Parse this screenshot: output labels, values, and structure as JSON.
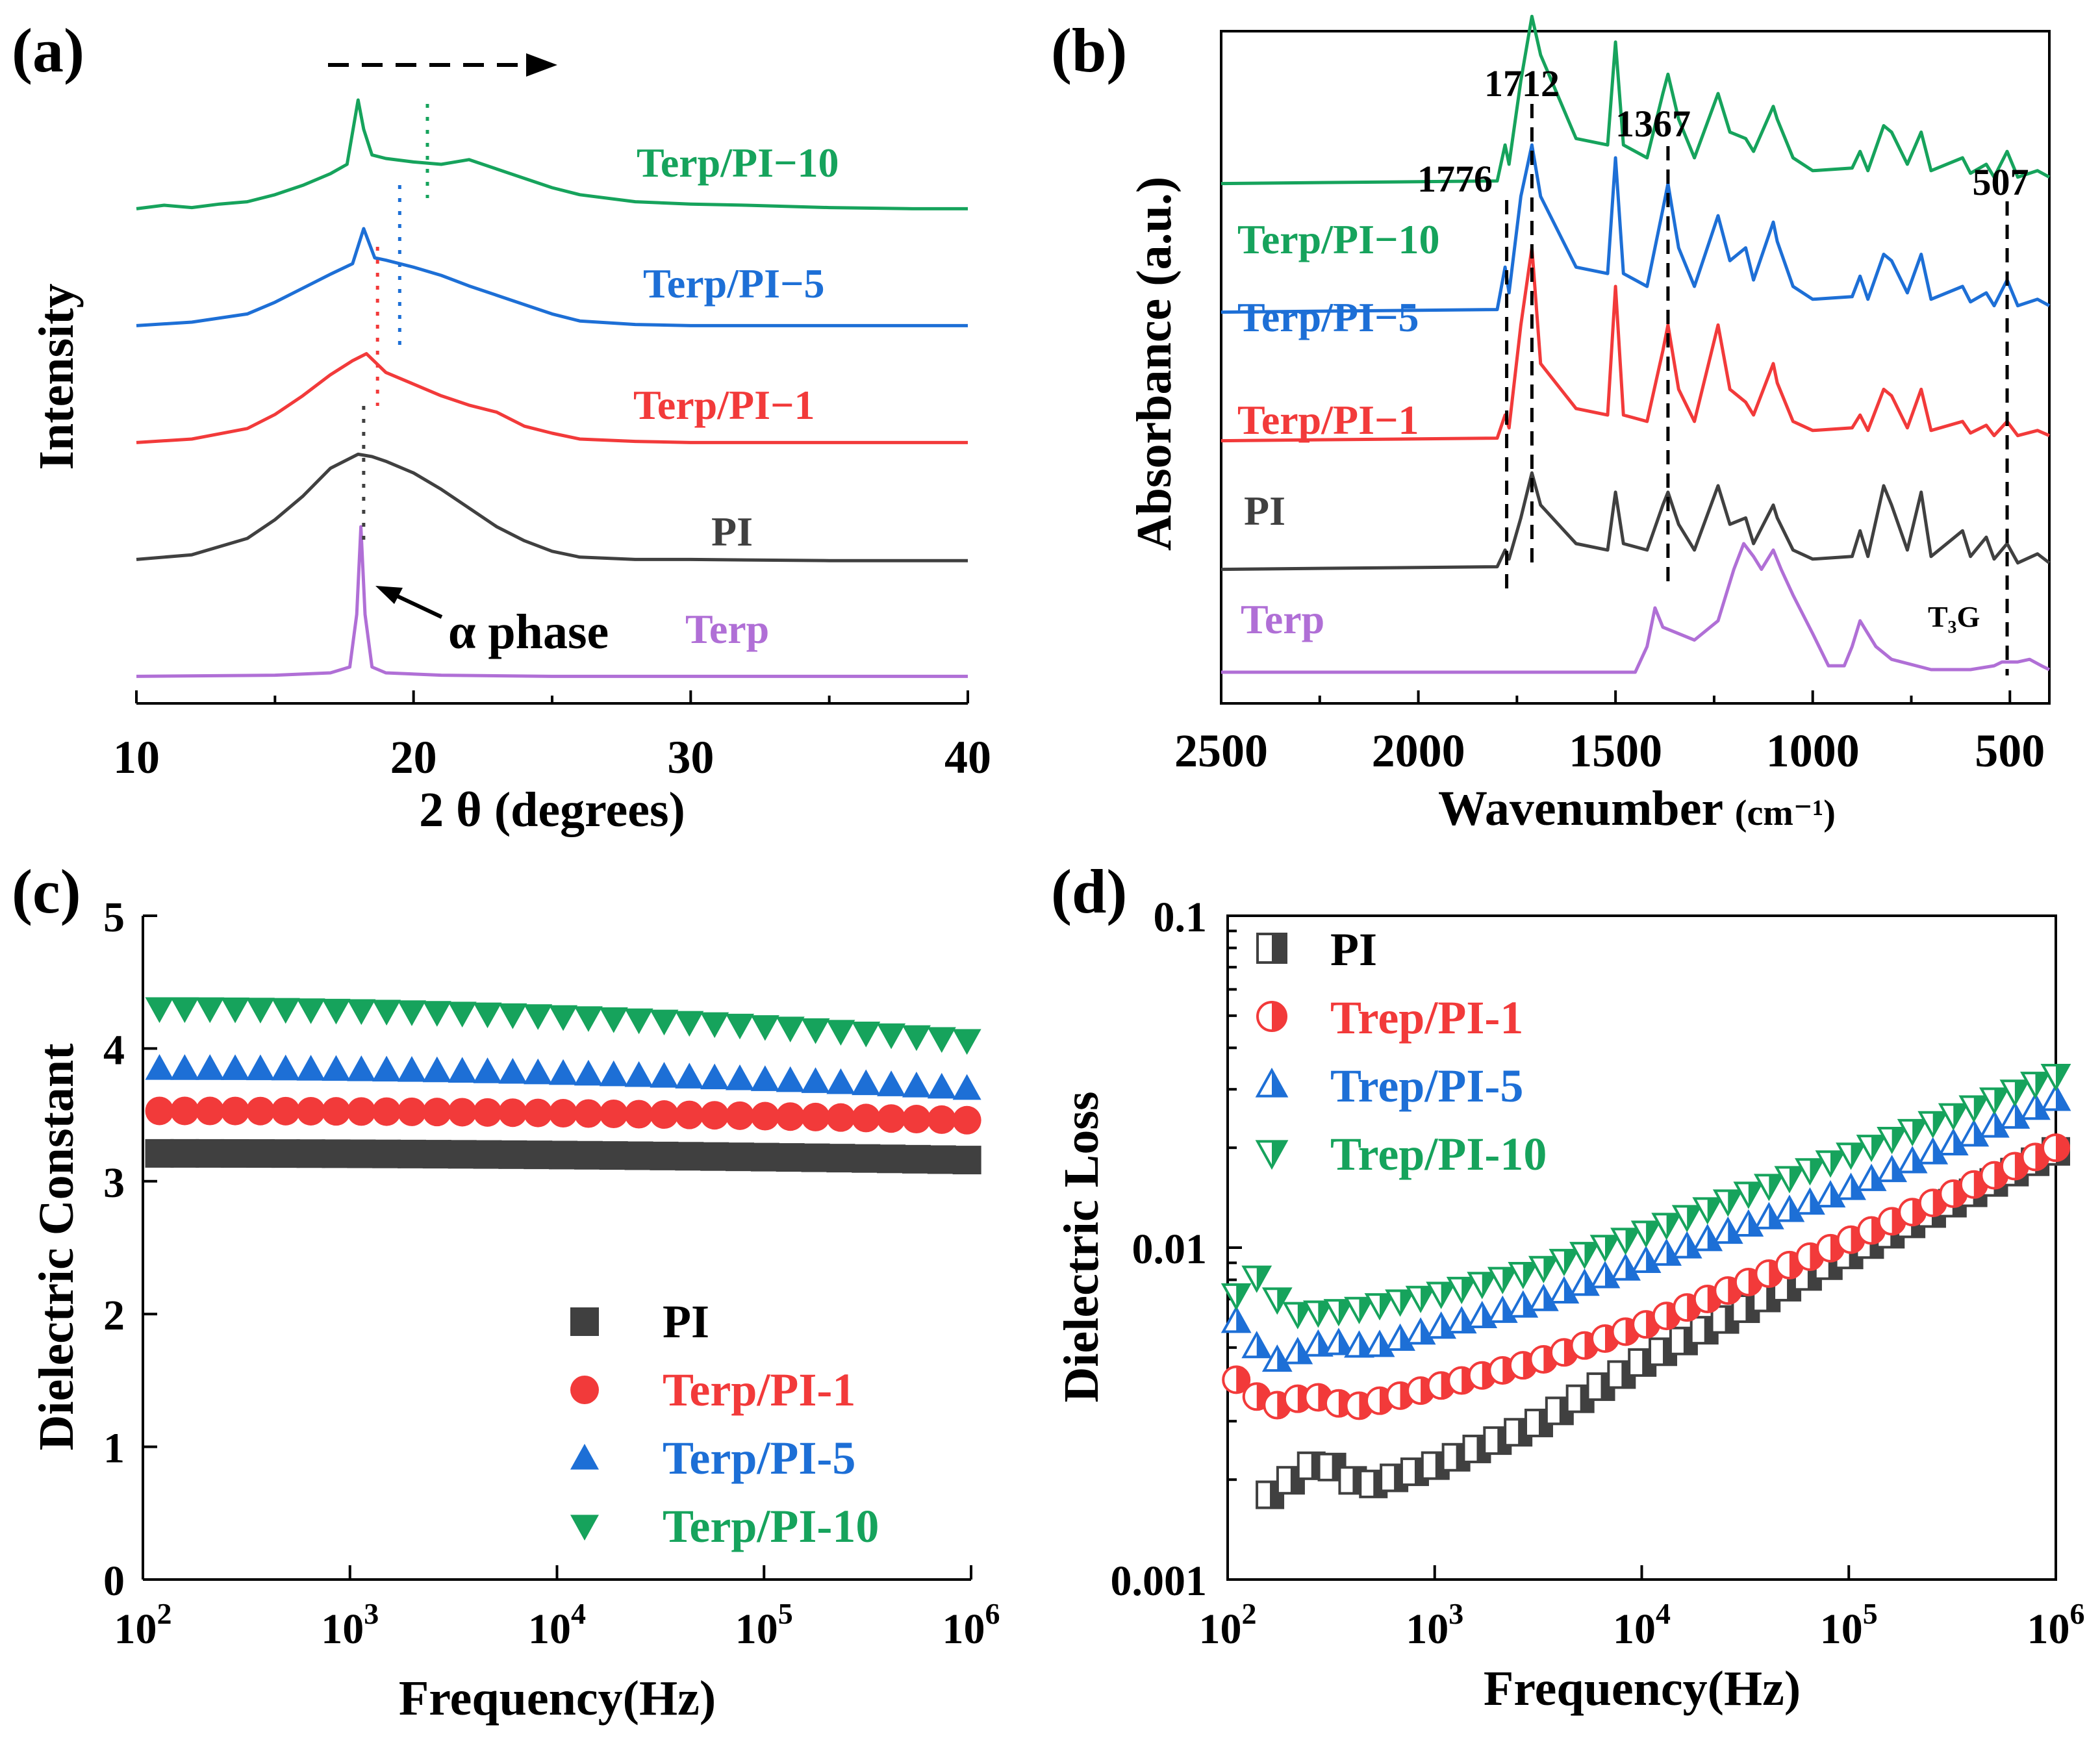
{
  "colors": {
    "gray": "#404040",
    "red": "#f23a3a",
    "blue": "#1d6fd6",
    "green": "#16a35c",
    "purple": "#b06fd6",
    "black": "#000000"
  },
  "chart_data": [
    {
      "id": "a",
      "panel_label": "(a)",
      "type": "line",
      "xlabel": "2 θ (degrees)",
      "ylabel": "Intensity",
      "xlim": [
        10,
        40
      ],
      "xticks": [
        "10",
        "20",
        "30",
        "40"
      ],
      "annotation": "α phase",
      "series": [
        {
          "name": "Terp/PI−10",
          "color": "green",
          "baseline": 4.0,
          "x": [
            10,
            11,
            12,
            13,
            14,
            15,
            16,
            17,
            17.6,
            18.0,
            18.2,
            18.5,
            19,
            20,
            21,
            22,
            23,
            24,
            25,
            26,
            28,
            30,
            32,
            35,
            38,
            40
          ],
          "y": [
            0.02,
            0.05,
            0.03,
            0.06,
            0.08,
            0.14,
            0.22,
            0.32,
            0.4,
            0.95,
            0.7,
            0.48,
            0.45,
            0.42,
            0.4,
            0.44,
            0.36,
            0.28,
            0.2,
            0.14,
            0.08,
            0.06,
            0.05,
            0.03,
            0.02,
            0.02
          ]
        },
        {
          "name": "Terp/PI−5",
          "color": "blue",
          "baseline": 3.0,
          "x": [
            10,
            12,
            14,
            15,
            16,
            17,
            17.8,
            18.2,
            18.6,
            19,
            20,
            21,
            22,
            23,
            24,
            25,
            26,
            28,
            30,
            35,
            40
          ],
          "y": [
            0.02,
            0.05,
            0.12,
            0.22,
            0.34,
            0.46,
            0.55,
            0.85,
            0.6,
            0.58,
            0.52,
            0.45,
            0.36,
            0.28,
            0.2,
            0.12,
            0.06,
            0.03,
            0.02,
            0.02,
            0.02
          ]
        },
        {
          "name": "Terp/PI−1",
          "color": "red",
          "baseline": 2.0,
          "x": [
            10,
            12,
            14,
            15,
            16,
            17,
            17.8,
            18.3,
            19,
            20,
            21,
            22,
            23,
            24,
            25,
            26,
            28,
            30,
            35,
            40
          ],
          "y": [
            0.02,
            0.05,
            0.14,
            0.26,
            0.42,
            0.6,
            0.72,
            0.78,
            0.62,
            0.52,
            0.42,
            0.34,
            0.28,
            0.16,
            0.1,
            0.05,
            0.03,
            0.02,
            0.02,
            0.02
          ]
        },
        {
          "name": "PI",
          "color": "gray",
          "baseline": 1.0,
          "x": [
            10,
            12,
            14,
            15,
            16,
            17,
            18,
            18.5,
            19,
            20,
            21,
            22,
            23,
            24,
            25,
            26,
            28,
            30,
            35,
            40
          ],
          "y": [
            0.02,
            0.06,
            0.2,
            0.36,
            0.56,
            0.8,
            0.92,
            0.9,
            0.86,
            0.76,
            0.62,
            0.46,
            0.3,
            0.18,
            0.09,
            0.04,
            0.02,
            0.02,
            0.01,
            0.01
          ]
        },
        {
          "name": "Terp",
          "color": "purple",
          "baseline": 0.0,
          "x": [
            10,
            15,
            17,
            17.7,
            17.95,
            18.1,
            18.25,
            18.5,
            19,
            21,
            25,
            30,
            40
          ],
          "y": [
            0.02,
            0.03,
            0.05,
            0.1,
            0.55,
            1.3,
            0.55,
            0.1,
            0.05,
            0.03,
            0.02,
            0.02,
            0.02
          ]
        }
      ]
    },
    {
      "id": "b",
      "panel_label": "(b)",
      "type": "line",
      "xlabel": "Wavenumber",
      "xlabel_unit": "(cm⁻¹)",
      "ylabel": "Absorbance (a.u.)",
      "xlim": [
        2500,
        400
      ],
      "xticks": [
        "2500",
        "2000",
        "1500",
        "1000",
        "500"
      ],
      "peak_labels": [
        "1776",
        "1712",
        "1367",
        "507"
      ],
      "extra_label": "T₃G",
      "series": [
        {
          "name": "Terp/PI−10",
          "color": "green",
          "baseline": 3.8,
          "x": [
            2500,
            1800,
            1780,
            1770,
            1740,
            1712,
            1690,
            1600,
            1520,
            1500,
            1480,
            1420,
            1380,
            1367,
            1340,
            1300,
            1240,
            1210,
            1170,
            1150,
            1100,
            1090,
            1050,
            1000,
            900,
            880,
            860,
            820,
            800,
            760,
            725,
            700,
            620,
            600,
            560,
            540,
            507,
            480,
            430,
            400
          ],
          "y": [
            0.0,
            0.02,
            0.3,
            0.15,
            0.8,
            1.3,
            1.0,
            0.35,
            0.3,
            1.1,
            0.3,
            0.2,
            0.7,
            0.85,
            0.5,
            0.2,
            0.7,
            0.4,
            0.35,
            0.25,
            0.6,
            0.5,
            0.2,
            0.1,
            0.12,
            0.25,
            0.1,
            0.45,
            0.4,
            0.15,
            0.4,
            0.1,
            0.2,
            0.08,
            0.15,
            0.05,
            0.25,
            0.05,
            0.1,
            0.05
          ]
        },
        {
          "name": "Terp/PI−5",
          "color": "blue",
          "baseline": 2.8,
          "x": [
            2500,
            1800,
            1780,
            1770,
            1740,
            1712,
            1690,
            1600,
            1520,
            1500,
            1480,
            1420,
            1380,
            1367,
            1340,
            1300,
            1240,
            1210,
            1170,
            1150,
            1100,
            1090,
            1050,
            1000,
            900,
            880,
            860,
            820,
            800,
            760,
            725,
            700,
            620,
            600,
            560,
            540,
            507,
            480,
            430,
            400
          ],
          "y": [
            0.0,
            0.02,
            0.35,
            0.15,
            0.9,
            1.3,
            0.9,
            0.35,
            0.3,
            1.2,
            0.3,
            0.2,
            0.8,
            1.0,
            0.5,
            0.2,
            0.75,
            0.4,
            0.5,
            0.25,
            0.7,
            0.55,
            0.2,
            0.1,
            0.12,
            0.28,
            0.1,
            0.45,
            0.4,
            0.15,
            0.45,
            0.1,
            0.2,
            0.08,
            0.15,
            0.05,
            0.25,
            0.05,
            0.1,
            0.05
          ]
        },
        {
          "name": "Terp/PI−1",
          "color": "red",
          "baseline": 1.8,
          "x": [
            2500,
            1800,
            1780,
            1770,
            1740,
            1712,
            1690,
            1600,
            1520,
            1500,
            1480,
            1420,
            1380,
            1367,
            1340,
            1300,
            1240,
            1210,
            1170,
            1150,
            1100,
            1090,
            1050,
            1000,
            900,
            880,
            860,
            820,
            800,
            760,
            725,
            700,
            620,
            600,
            560,
            540,
            507,
            480,
            430,
            400
          ],
          "y": [
            0.0,
            0.02,
            0.2,
            0.1,
            0.9,
            1.5,
            0.6,
            0.25,
            0.2,
            1.2,
            0.2,
            0.15,
            0.7,
            0.9,
            0.4,
            0.15,
            0.9,
            0.4,
            0.3,
            0.2,
            0.6,
            0.45,
            0.15,
            0.08,
            0.1,
            0.2,
            0.08,
            0.4,
            0.35,
            0.1,
            0.4,
            0.08,
            0.15,
            0.06,
            0.12,
            0.04,
            0.15,
            0.04,
            0.08,
            0.04
          ]
        },
        {
          "name": "PI",
          "color": "gray",
          "baseline": 0.8,
          "x": [
            2500,
            1800,
            1780,
            1770,
            1740,
            1712,
            1690,
            1600,
            1520,
            1500,
            1480,
            1420,
            1380,
            1367,
            1340,
            1300,
            1240,
            1210,
            1170,
            1150,
            1100,
            1090,
            1050,
            1000,
            900,
            880,
            860,
            820,
            800,
            760,
            725,
            700,
            620,
            600,
            560,
            540,
            507,
            480,
            430,
            400
          ],
          "y": [
            0.0,
            0.02,
            0.15,
            0.08,
            0.4,
            0.75,
            0.5,
            0.2,
            0.15,
            0.6,
            0.2,
            0.15,
            0.5,
            0.6,
            0.35,
            0.15,
            0.65,
            0.35,
            0.4,
            0.2,
            0.5,
            0.4,
            0.15,
            0.08,
            0.1,
            0.3,
            0.1,
            0.65,
            0.5,
            0.15,
            0.6,
            0.1,
            0.3,
            0.1,
            0.25,
            0.08,
            0.2,
            0.05,
            0.12,
            0.05
          ]
        },
        {
          "name": "Terp",
          "color": "purple",
          "baseline": 0.0,
          "x": [
            2500,
            1450,
            1420,
            1400,
            1380,
            1300,
            1240,
            1200,
            1175,
            1150,
            1130,
            1100,
            1080,
            1050,
            1000,
            960,
            920,
            900,
            880,
            860,
            840,
            800,
            700,
            600,
            540,
            520,
            500,
            480,
            450,
            420,
            400
          ],
          "y": [
            0.0,
            0.0,
            0.2,
            0.5,
            0.35,
            0.25,
            0.4,
            0.8,
            1.0,
            0.9,
            0.8,
            0.95,
            0.8,
            0.6,
            0.3,
            0.05,
            0.05,
            0.2,
            0.4,
            0.3,
            0.2,
            0.1,
            0.02,
            0.02,
            0.05,
            0.08,
            0.08,
            0.08,
            0.1,
            0.05,
            0.02
          ]
        }
      ]
    },
    {
      "id": "c",
      "panel_label": "(c)",
      "type": "scatter",
      "xscale": "log",
      "xlim": [
        100,
        1000000
      ],
      "ylim": [
        0,
        5
      ],
      "xlabel": "Frequency(Hz)",
      "ylabel": "Dielectric Constant",
      "xtick_exponents": [
        "2",
        "3",
        "4",
        "5",
        "6"
      ],
      "yticks": [
        "0",
        "1",
        "2",
        "3",
        "4",
        "5"
      ],
      "legend_position": "lower-center",
      "series": [
        {
          "name": "PI",
          "color": "gray",
          "marker": "square",
          "start": 3.21,
          "end": 3.16
        },
        {
          "name": "Terp/PI-1",
          "color": "red",
          "marker": "circle",
          "start": 3.53,
          "end": 3.46
        },
        {
          "name": "Terp/PI-5",
          "color": "blue",
          "marker": "triangle-up",
          "start": 3.85,
          "end": 3.7
        },
        {
          "name": "Terp/PI-10",
          "color": "green",
          "marker": "triangle-down",
          "start": 4.3,
          "end": 4.06
        }
      ]
    },
    {
      "id": "d",
      "panel_label": "(d)",
      "type": "scatter",
      "xscale": "log",
      "yscale": "log",
      "xlim": [
        100,
        1000000
      ],
      "ylim": [
        0.001,
        0.1
      ],
      "xlabel": "Frequency(Hz)",
      "ylabel": "Dielectric Loss",
      "xtick_exponents": [
        "2",
        "3",
        "4",
        "5",
        "6"
      ],
      "yticks": [
        "0.001",
        "0.01",
        "0.1"
      ],
      "legend_position": "upper-left",
      "series": [
        {
          "name": "PI",
          "color": "gray",
          "marker": "half-square",
          "fx": [
            160,
            280,
            450,
            1000,
            3000,
            10000,
            100000,
            1000000
          ],
          "fy": [
            0.0018,
            0.0023,
            0.0019,
            0.0022,
            0.0029,
            0.0045,
            0.0095,
            0.0195
          ]
        },
        {
          "name": "Trep/PI-1",
          "color": "red",
          "marker": "half-circle",
          "fx": [
            110,
            160,
            250,
            400,
            1000,
            3000,
            10000,
            100000,
            1000000
          ],
          "fy": [
            0.004,
            0.0033,
            0.0036,
            0.0033,
            0.0038,
            0.0045,
            0.0058,
            0.0105,
            0.02
          ]
        },
        {
          "name": "Trep/PI-5",
          "color": "blue",
          "marker": "half-triangle-up",
          "fx": [
            110,
            160,
            300,
            500,
            1000,
            3000,
            10000,
            100000,
            1000000
          ],
          "fy": [
            0.006,
            0.0045,
            0.0052,
            0.005,
            0.0057,
            0.0068,
            0.009,
            0.015,
            0.028
          ]
        },
        {
          "name": "Trep/PI-10",
          "color": "green",
          "marker": "half-triangle-down",
          "fx": [
            110,
            140,
            200,
            400,
            1000,
            3000,
            10000,
            100000,
            1000000
          ],
          "fy": [
            0.0072,
            0.0082,
            0.0063,
            0.0065,
            0.0072,
            0.0085,
            0.011,
            0.019,
            0.033
          ]
        }
      ]
    }
  ]
}
